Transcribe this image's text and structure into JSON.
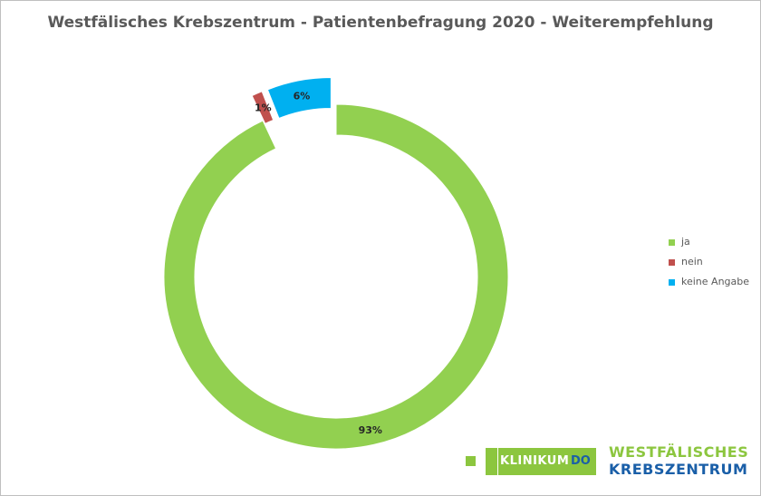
{
  "chart_data": {
    "type": "pie",
    "title": "Westfälisches Krebszentrum - Patientenbefragung 2020 - Weiterempfehlung",
    "categories": [
      "ja",
      "nein",
      "keine Angabe"
    ],
    "values": [
      93,
      1,
      6
    ],
    "labels": [
      "93%",
      "1%",
      "6%"
    ],
    "colors": [
      "#92d050",
      "#c0504d",
      "#00b0f0"
    ],
    "legend_position": "right"
  },
  "logo": {
    "klinikum": "KLINIKUM",
    "do": "DO",
    "line1": "WESTFÄLISCHES",
    "line2": "KREBSZENTRUM",
    "green": "#8cc63f",
    "blue": "#1a5fa8"
  }
}
